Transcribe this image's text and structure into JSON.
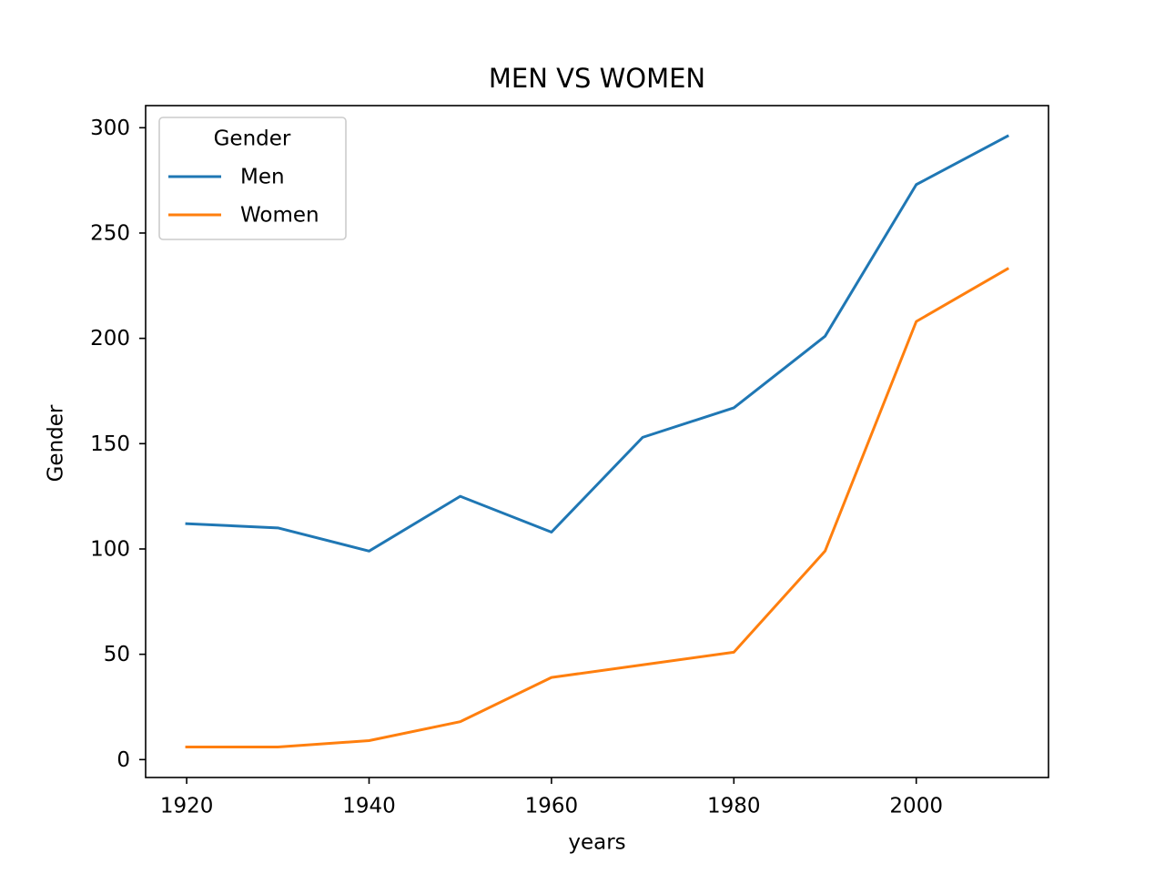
{
  "chart_data": {
    "type": "line",
    "title": "MEN VS WOMEN",
    "xlabel": "years",
    "ylabel": "Gender",
    "x": [
      1920,
      1930,
      1940,
      1950,
      1960,
      1970,
      1980,
      1990,
      2000,
      2010
    ],
    "series": [
      {
        "name": "Men",
        "color": "#1f77b4",
        "values": [
          112,
          110,
          99,
          125,
          108,
          153,
          167,
          201,
          273,
          296
        ]
      },
      {
        "name": "Women",
        "color": "#ff7f0e",
        "values": [
          6,
          6,
          9,
          18,
          39,
          45,
          51,
          99,
          208,
          233
        ]
      }
    ],
    "xticks": [
      1920,
      1940,
      1960,
      1980,
      2000
    ],
    "yticks": [
      0,
      50,
      100,
      150,
      200,
      250,
      300
    ],
    "xlim": [
      1915.5,
      2014.5
    ],
    "ylim": [
      -8.5,
      310.5
    ],
    "legend": {
      "title": "Gender",
      "placement": "top-left"
    },
    "grid": false
  }
}
